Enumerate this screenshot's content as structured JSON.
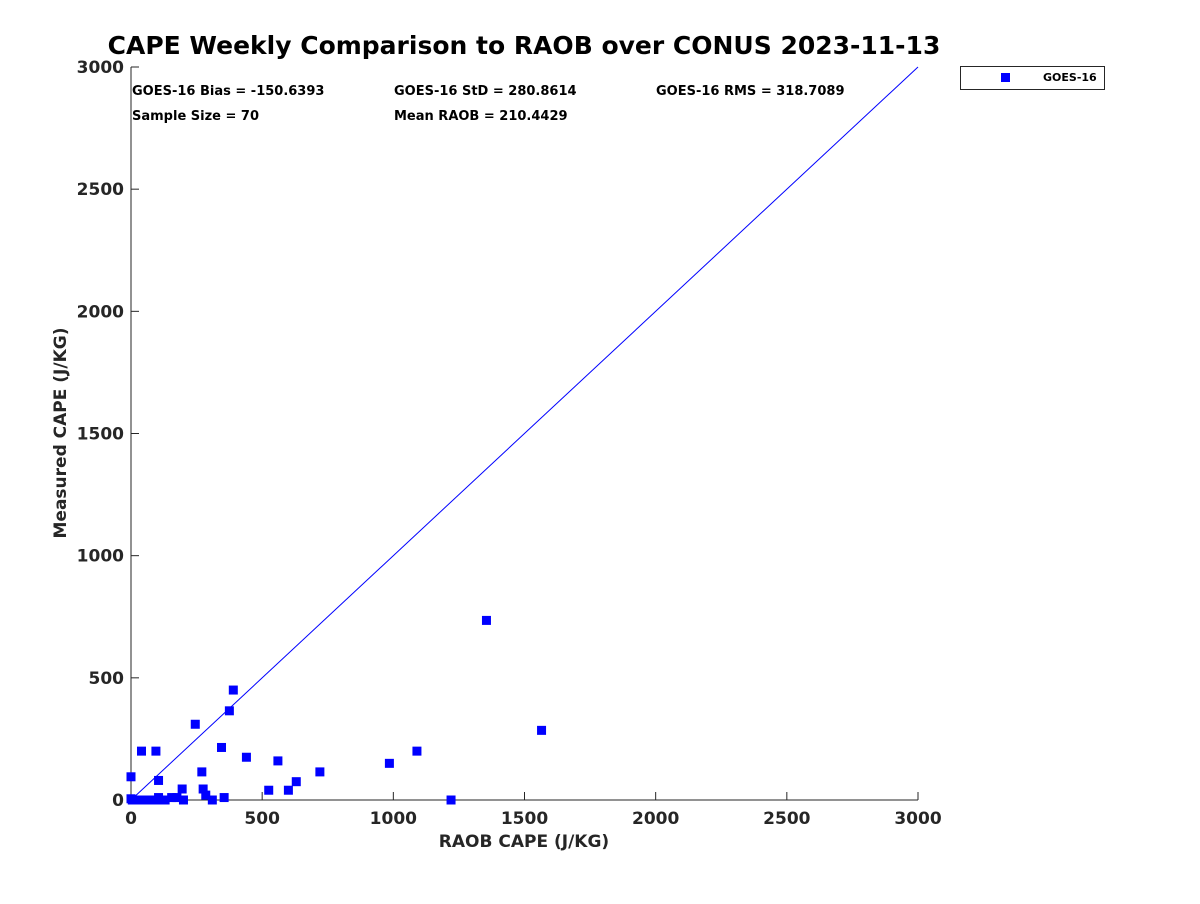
{
  "chart_data": {
    "type": "scatter",
    "title": "CAPE Weekly Comparison to RAOB over CONUS 2023-11-13",
    "xlabel": "RAOB CAPE (J/KG)",
    "ylabel": "Measured CAPE (J/KG)",
    "xlim": [
      0,
      3000
    ],
    "ylim": [
      0,
      3000
    ],
    "xticks": [
      0,
      500,
      1000,
      1500,
      2000,
      2500,
      3000
    ],
    "yticks": [
      0,
      500,
      1000,
      1500,
      2000,
      2500,
      3000
    ],
    "grid": false,
    "legend_position": "outside-top-right",
    "reference_line": {
      "name": "1:1 line",
      "x": [
        0,
        3000
      ],
      "y": [
        0,
        3000
      ],
      "color": "#0000ff"
    },
    "stats": [
      {
        "label": "GOES-16 Bias = -150.6393"
      },
      {
        "label": "GOES-16 StD = 280.8614"
      },
      {
        "label": "GOES-16 RMS = 318.7089"
      },
      {
        "label": "Sample Size = 70"
      },
      {
        "label": "Mean RAOB = 210.4429"
      }
    ],
    "series": [
      {
        "name": "GOES-16",
        "color": "#0000ff",
        "marker": "square",
        "points": [
          {
            "x": 0,
            "y": 95
          },
          {
            "x": 0,
            "y": 5
          },
          {
            "x": 5,
            "y": 0
          },
          {
            "x": 10,
            "y": 0
          },
          {
            "x": 20,
            "y": 0
          },
          {
            "x": 30,
            "y": 0
          },
          {
            "x": 40,
            "y": 0
          },
          {
            "x": 50,
            "y": 0
          },
          {
            "x": 60,
            "y": 0
          },
          {
            "x": 70,
            "y": 0
          },
          {
            "x": 80,
            "y": 0
          },
          {
            "x": 90,
            "y": 0
          },
          {
            "x": 40,
            "y": 200
          },
          {
            "x": 95,
            "y": 200
          },
          {
            "x": 105,
            "y": 80
          },
          {
            "x": 105,
            "y": 10
          },
          {
            "x": 120,
            "y": 0
          },
          {
            "x": 130,
            "y": 0
          },
          {
            "x": 155,
            "y": 10
          },
          {
            "x": 175,
            "y": 10
          },
          {
            "x": 195,
            "y": 45
          },
          {
            "x": 200,
            "y": 0
          },
          {
            "x": 245,
            "y": 310
          },
          {
            "x": 270,
            "y": 115
          },
          {
            "x": 275,
            "y": 45
          },
          {
            "x": 285,
            "y": 20
          },
          {
            "x": 310,
            "y": 0
          },
          {
            "x": 345,
            "y": 215
          },
          {
            "x": 355,
            "y": 10
          },
          {
            "x": 375,
            "y": 365
          },
          {
            "x": 390,
            "y": 450
          },
          {
            "x": 440,
            "y": 175
          },
          {
            "x": 525,
            "y": 40
          },
          {
            "x": 560,
            "y": 160
          },
          {
            "x": 600,
            "y": 40
          },
          {
            "x": 630,
            "y": 75
          },
          {
            "x": 720,
            "y": 115
          },
          {
            "x": 985,
            "y": 150
          },
          {
            "x": 1090,
            "y": 200
          },
          {
            "x": 1220,
            "y": 0
          },
          {
            "x": 1355,
            "y": 735
          },
          {
            "x": 1565,
            "y": 285
          }
        ]
      }
    ]
  }
}
